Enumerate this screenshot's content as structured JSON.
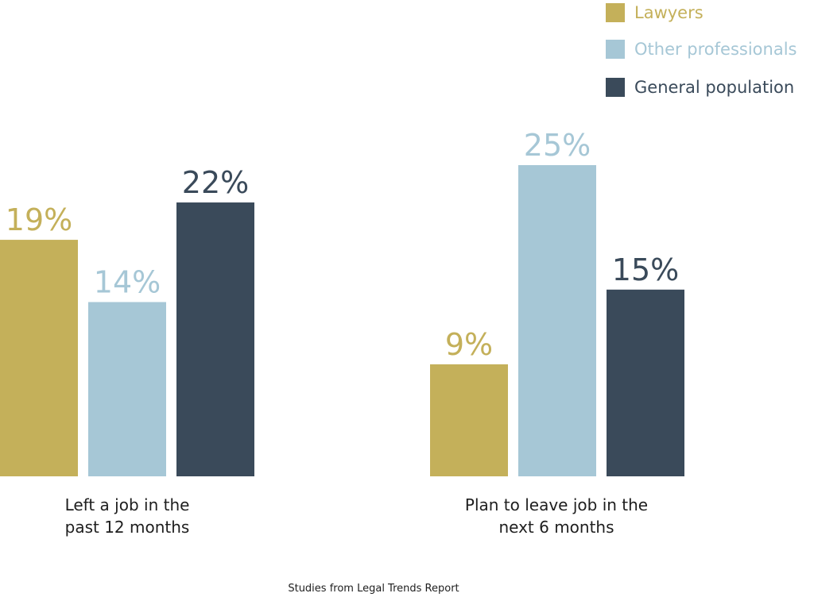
{
  "chart_data": {
    "type": "bar",
    "categories": [
      "Left a job in the past 12 months",
      "Plan to leave job in the next 6 months"
    ],
    "category_lines": [
      [
        "Left a job in the",
        "past 12 months"
      ],
      [
        "Plan to leave job in the",
        "next 6 months"
      ]
    ],
    "series": [
      {
        "name": "Lawyers",
        "values": [
          19,
          9
        ],
        "color": "#c4b05a"
      },
      {
        "name": "Other professionals",
        "values": [
          14,
          25
        ],
        "color": "#a6c7d6"
      },
      {
        "name": "General population",
        "values": [
          22,
          15
        ],
        "color": "#3a4a5a"
      }
    ],
    "value_suffix": "%",
    "ylim": [
      0,
      25
    ],
    "grid": false,
    "legend_position": "top-right",
    "footnote": "Studies from Legal Trends Report"
  }
}
